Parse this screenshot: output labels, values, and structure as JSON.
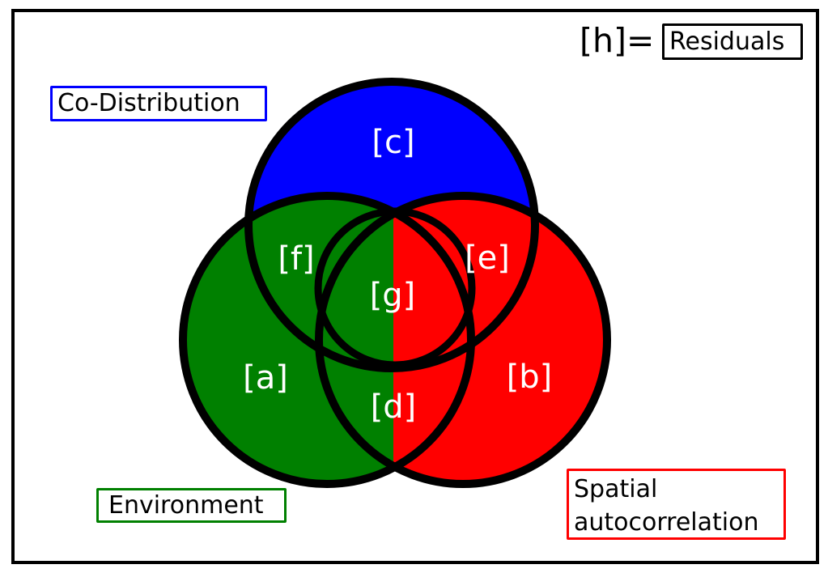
{
  "diagram": {
    "type": "venn",
    "sets": [
      {
        "name": "Co-Distribution",
        "color": "#0000ff"
      },
      {
        "name": "Environment",
        "color": "#008000"
      },
      {
        "name": "Spatial autocorrelation",
        "color": "#ff0000"
      }
    ],
    "regions": {
      "a": "[a]",
      "b": "[b]",
      "c": "[c]",
      "d": "[d]",
      "e": "[e]",
      "f": "[f]",
      "g": "[g]"
    },
    "legend": {
      "codistribution": "Co-Distribution",
      "environment": "Environment",
      "spatial_line1": "Spatial",
      "spatial_line2": "autocorrelation",
      "h_label": "[h]=",
      "residuals": "Residuals"
    },
    "colors": {
      "outline": "#000000",
      "region_text": "#ffffff"
    }
  }
}
